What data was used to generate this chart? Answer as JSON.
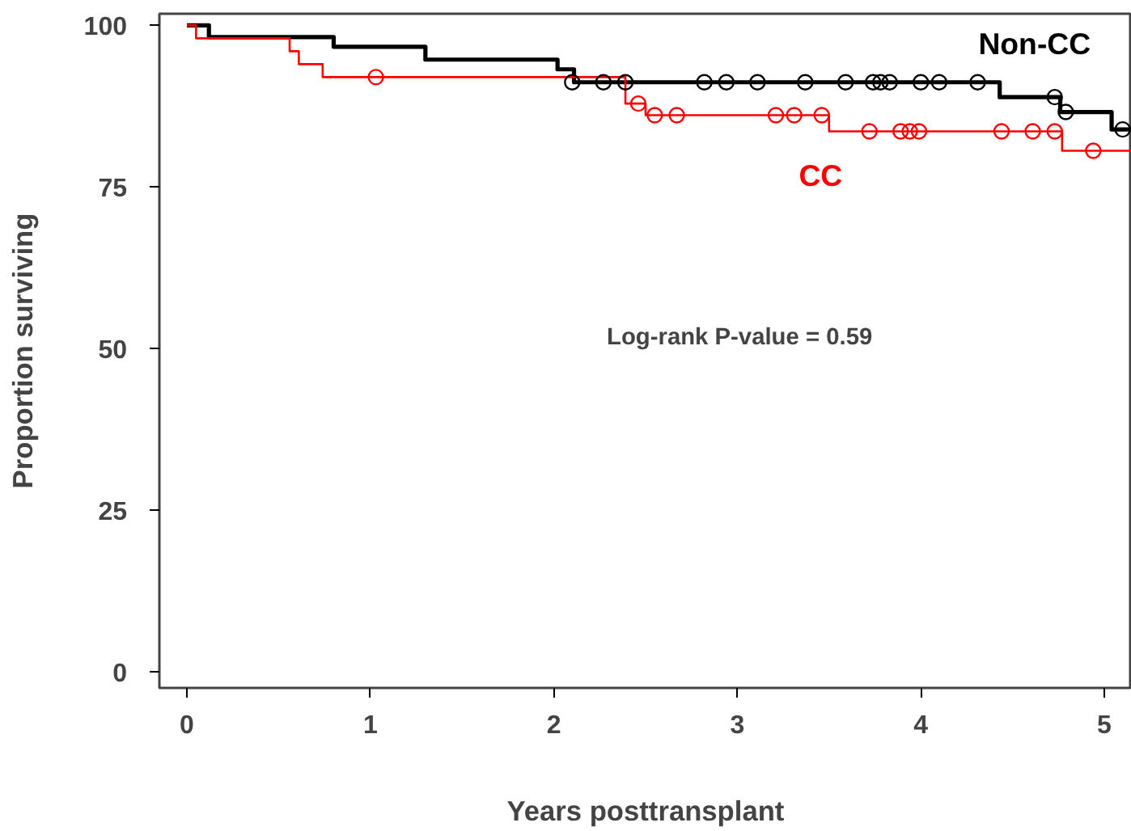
{
  "chart_data": {
    "type": "step",
    "xlabel": "Years posttransplant",
    "ylabel": "Proportion surviving",
    "xlim": [
      -0.15,
      5.15
    ],
    "ylim": [
      -2.5,
      101.8
    ],
    "xticks": [
      0,
      1,
      2,
      3,
      4,
      5
    ],
    "yticks": [
      0,
      25,
      50,
      75,
      100
    ],
    "grid": false,
    "line_style": "solid",
    "annotations": [
      "Log-rank  P-value = 0.59"
    ],
    "series": [
      {
        "name": "Non-CC",
        "color": "#000000",
        "x": [
          0,
          0.12,
          0.8,
          1.3,
          2.02,
          2.11,
          4.43,
          4.76,
          5.04,
          5.15
        ],
        "values": [
          100,
          98.2,
          96.7,
          94.7,
          93.2,
          91.2,
          88.9,
          86.6,
          83.9,
          83.9
        ]
      },
      {
        "name": "CC",
        "color": "#ff0000",
        "x": [
          0,
          0.05,
          0.56,
          0.61,
          0.74,
          2.39,
          2.5,
          3.5,
          4.77,
          5.15
        ],
        "values": [
          100,
          98,
          96,
          94,
          92,
          87.9,
          86.1,
          83.6,
          80.6,
          80.6
        ]
      },
      {
        "color": "#000000",
        "type": "scatter",
        "marker": "circle",
        "x": [
          2.1,
          2.27,
          2.39,
          2.82,
          2.94,
          3.11,
          3.37,
          3.59,
          3.74,
          3.78,
          3.83,
          4.0,
          4.1,
          4.31,
          4.73,
          4.79,
          5.1
        ],
        "values": [
          91.2,
          91.2,
          91.2,
          91.2,
          91.2,
          91.2,
          91.2,
          91.2,
          91.2,
          91.2,
          91.2,
          91.2,
          91.2,
          91.2,
          88.9,
          86.6,
          83.9
        ]
      },
      {
        "color": "#ff0000",
        "type": "scatter",
        "marker": "circle",
        "x": [
          1.03,
          2.46,
          2.55,
          2.67,
          3.21,
          3.31,
          3.46,
          3.72,
          3.89,
          3.94,
          3.99,
          4.44,
          4.61,
          4.73,
          4.94
        ],
        "values": [
          92,
          87.9,
          86.1,
          86.1,
          86.1,
          86.1,
          86.1,
          83.6,
          83.6,
          83.6,
          83.6,
          83.6,
          83.6,
          83.6,
          80.6
        ]
      }
    ]
  }
}
